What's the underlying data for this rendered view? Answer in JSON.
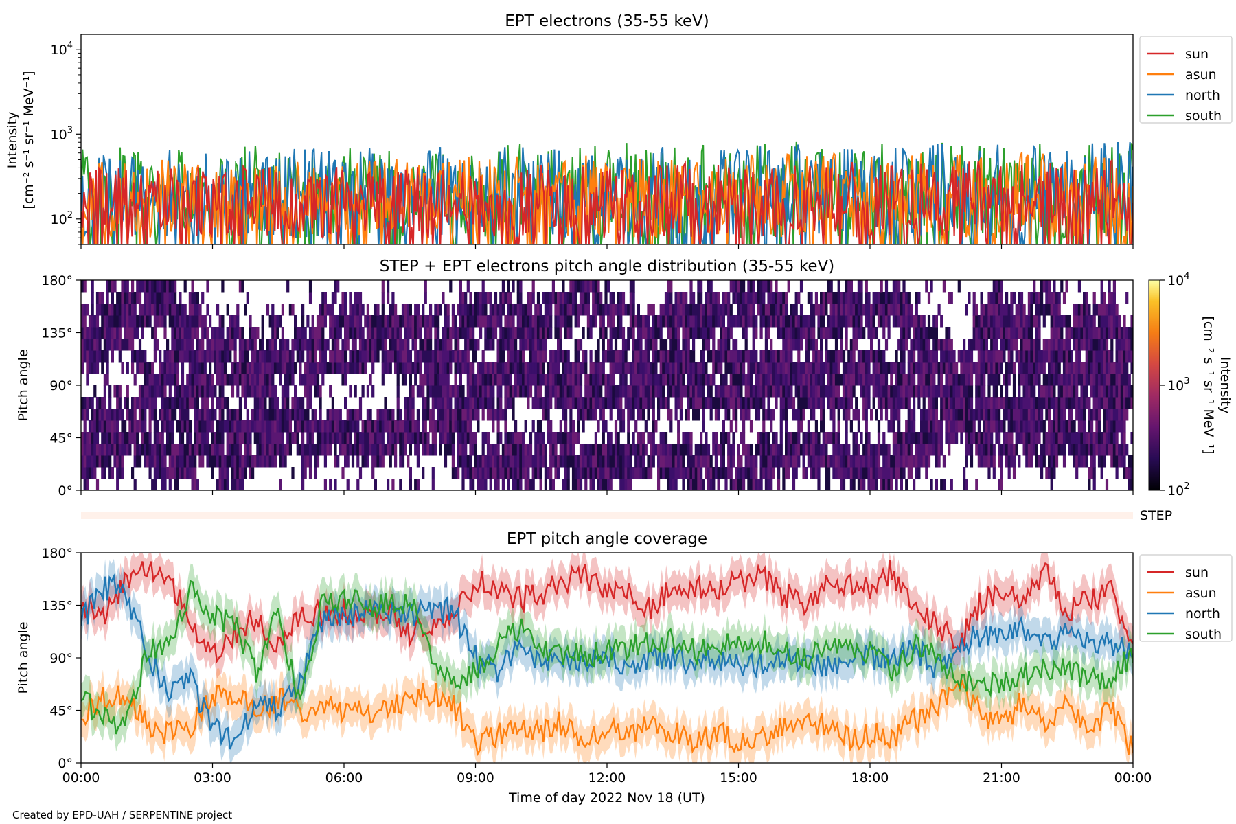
{
  "credit": "Created by EPD-UAH / SERPENTINE project",
  "colors": {
    "sun": "#d62728",
    "asun": "#ff7f0e",
    "north": "#1f77b4",
    "south": "#2ca02c",
    "step_bar": "#fff1ea"
  },
  "chart_data": [
    {
      "panel": "intensity",
      "type": "line",
      "title": "EPT electrons (35-55 keV)",
      "ylabel_line1": "Intensity",
      "ylabel_line2": "[cm⁻² s⁻¹ sr⁻¹ MeV⁻¹]",
      "yscale": "log",
      "ylim": [
        50,
        15000
      ],
      "yticks": [
        {
          "value": 100,
          "base": "10",
          "exp": "2"
        },
        {
          "value": 1000,
          "base": "10",
          "exp": "3"
        },
        {
          "value": 10000,
          "base": "10",
          "exp": "4"
        }
      ],
      "xlim_hours": [
        0,
        24
      ],
      "legend": [
        "sun",
        "asun",
        "north",
        "south"
      ],
      "legend_position": "outside-right",
      "series": [
        {
          "name": "sun",
          "typical_range": [
            60,
            400
          ]
        },
        {
          "name": "asun",
          "typical_range": [
            60,
            500
          ]
        },
        {
          "name": "north",
          "typical_range": [
            60,
            650
          ]
        },
        {
          "name": "south",
          "typical_range": [
            60,
            700
          ]
        }
      ]
    },
    {
      "panel": "pitch-angle-distribution",
      "type": "heatmap",
      "title": "STEP + EPT electrons pitch angle distribution (35-55 keV)",
      "ylabel": "Pitch angle",
      "ylim": [
        0,
        180
      ],
      "yticks": [
        "0°",
        "45°",
        "90°",
        "135°",
        "180°"
      ],
      "colorbar": {
        "scale": "log",
        "range": [
          100,
          10000
        ],
        "ticks": [
          {
            "base": "10",
            "exp": "2"
          },
          {
            "base": "10",
            "exp": "3"
          },
          {
            "base": "10",
            "exp": "4"
          }
        ],
        "label_line1": "Intensity",
        "label_line2": "[cm⁻² s⁻¹ sr⁻¹ MeV⁻¹]",
        "colormap": "inferno"
      },
      "step_label": "STEP"
    },
    {
      "panel": "pitch-angle-coverage",
      "type": "line",
      "title": "EPT pitch angle coverage",
      "ylabel": "Pitch angle",
      "ylim": [
        0,
        180
      ],
      "yticks": [
        "0°",
        "45°",
        "90°",
        "135°",
        "180°"
      ],
      "xlabel": "Time of day 2022 Nov 18 (UT)",
      "xticks": [
        "00:00",
        "03:00",
        "06:00",
        "09:00",
        "12:00",
        "15:00",
        "18:00",
        "21:00",
        "00:00"
      ],
      "legend": [
        "sun",
        "asun",
        "north",
        "south"
      ],
      "legend_position": "outside-right",
      "x_hours": [
        0,
        0.5,
        1,
        1.5,
        2,
        2.5,
        3,
        3.5,
        4,
        4.5,
        5,
        5.5,
        6,
        6.5,
        7,
        7.5,
        8,
        8.5,
        9,
        9.5,
        10,
        10.5,
        11,
        11.5,
        12,
        12.5,
        13,
        13.5,
        14,
        14.5,
        15,
        15.5,
        16,
        16.5,
        17,
        17.5,
        18,
        18.5,
        19,
        19.5,
        20,
        20.5,
        21,
        21.5,
        22,
        22.5,
        23,
        23.5,
        24
      ],
      "series": [
        {
          "name": "sun",
          "values": [
            135,
            125,
            155,
            165,
            160,
            120,
            95,
            110,
            125,
            100,
            130,
            128,
            130,
            125,
            130,
            110,
            120,
            125,
            155,
            150,
            140,
            145,
            155,
            160,
            150,
            145,
            130,
            150,
            150,
            150,
            155,
            160,
            145,
            135,
            150,
            155,
            150,
            165,
            130,
            120,
            100,
            135,
            150,
            140,
            165,
            130,
            140,
            145,
            100
          ]
        },
        {
          "name": "asun",
          "values": [
            40,
            55,
            60,
            35,
            25,
            30,
            55,
            55,
            45,
            55,
            45,
            50,
            45,
            45,
            45,
            55,
            60,
            50,
            15,
            25,
            30,
            25,
            35,
            20,
            30,
            20,
            35,
            25,
            20,
            25,
            20,
            20,
            30,
            40,
            30,
            20,
            25,
            20,
            35,
            50,
            70,
            45,
            30,
            55,
            30,
            55,
            30,
            45,
            10
          ]
        },
        {
          "name": "north",
          "values": [
            120,
            150,
            150,
            95,
            60,
            70,
            30,
            15,
            55,
            45,
            70,
            120,
            125,
            130,
            130,
            125,
            130,
            130,
            90,
            80,
            95,
            90,
            90,
            85,
            90,
            85,
            90,
            90,
            85,
            90,
            85,
            85,
            90,
            85,
            80,
            90,
            90,
            90,
            100,
            80,
            100,
            110,
            105,
            115,
            100,
            110,
            105,
            100,
            95
          ]
        },
        {
          "name": "south",
          "values": [
            55,
            40,
            30,
            95,
            100,
            150,
            125,
            120,
            80,
            130,
            45,
            140,
            140,
            135,
            135,
            140,
            90,
            70,
            80,
            100,
            115,
            95,
            95,
            90,
            95,
            100,
            105,
            105,
            95,
            100,
            100,
            105,
            95,
            90,
            95,
            100,
            95,
            75,
            100,
            90,
            70,
            70,
            65,
            75,
            80,
            80,
            70,
            75,
            95
          ]
        }
      ]
    }
  ]
}
